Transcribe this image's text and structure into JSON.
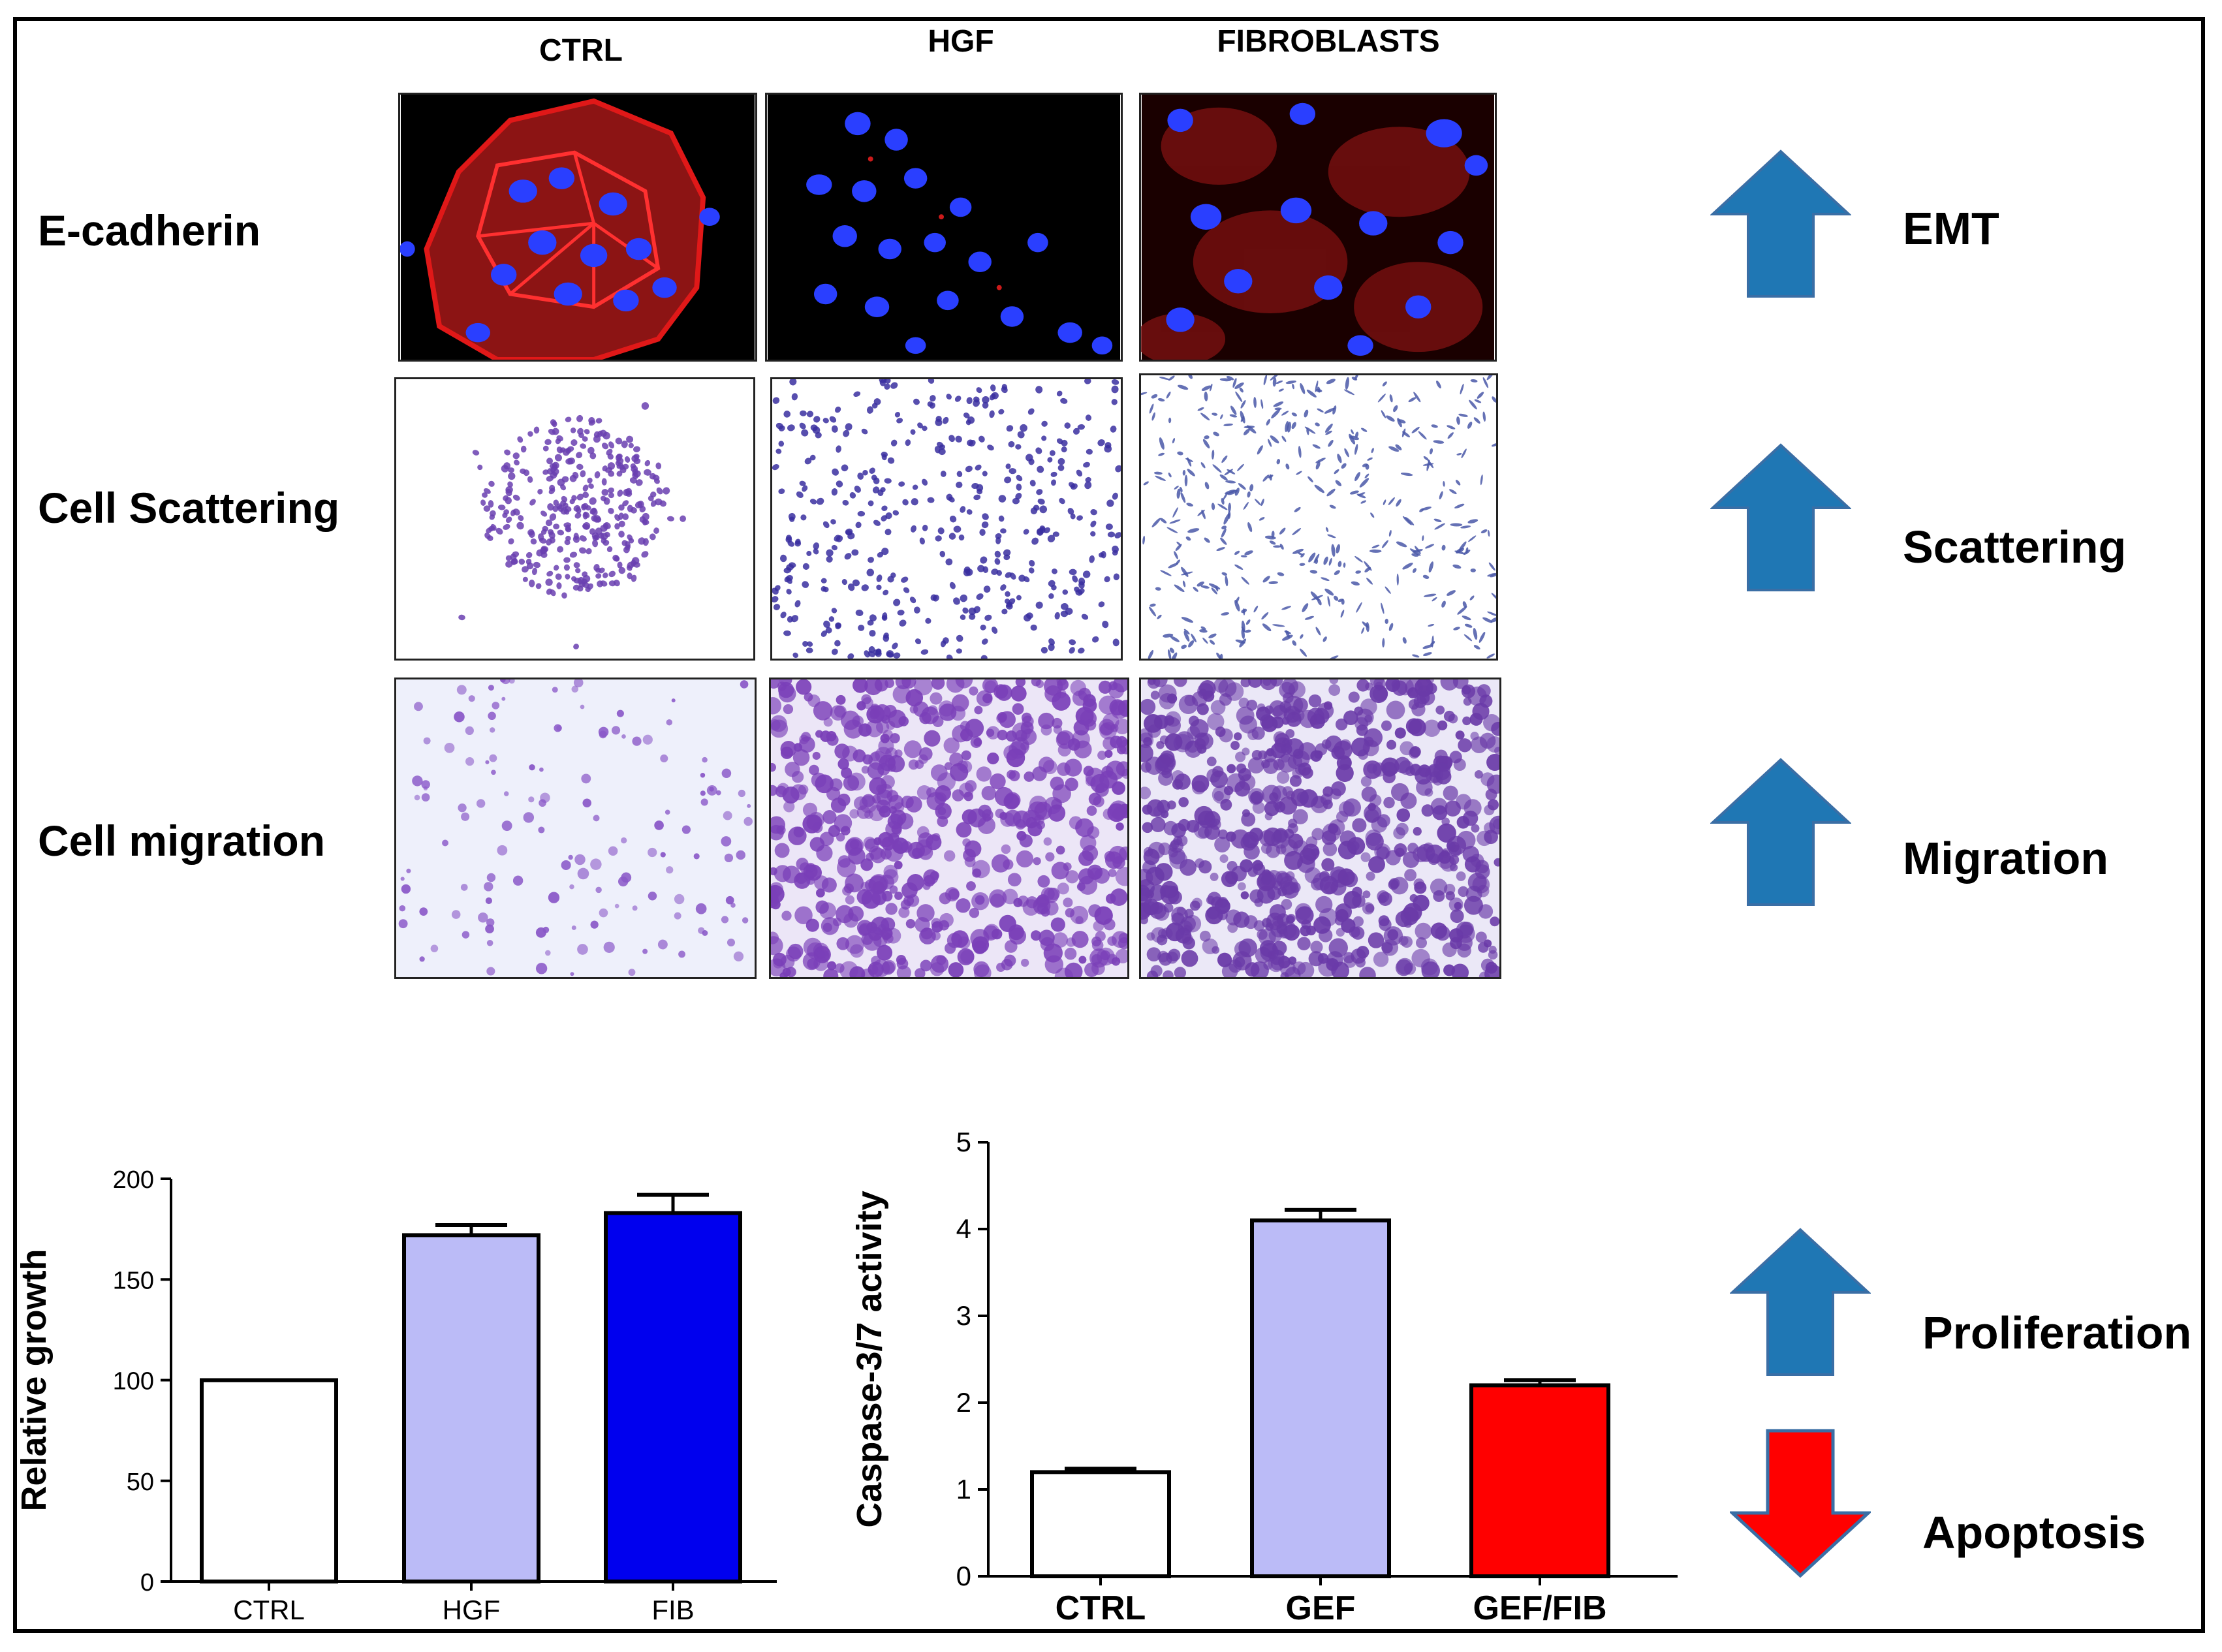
{
  "figure": {
    "columns": [
      "CTRL",
      "HGF",
      "FIBROBLASTS"
    ],
    "rows": [
      "E-cadherin",
      "Cell Scattering",
      "Cell migration"
    ],
    "effects": {
      "emt": "EMT",
      "scattering": "Scattering",
      "migration": "Migration",
      "proliferation": "Proliferation",
      "apoptosis": "Apoptosis"
    },
    "colors": {
      "up_arrow": "#1f77b4",
      "down_arrow": "#ff0000",
      "nuclei": "#2233ff",
      "membrane": "#e01818",
      "stain": "#6a3fb0"
    },
    "icons": {
      "up": "up-arrow-icon",
      "down": "down-arrow-icon"
    }
  },
  "chart_data": [
    {
      "type": "bar",
      "categories": [
        "CTRL",
        "HGF",
        "FIB"
      ],
      "values": [
        100,
        172,
        183
      ],
      "errors": [
        0,
        5,
        9
      ],
      "colors": [
        "#ffffff",
        "#bbbbf7",
        "#0000ee"
      ],
      "ylabel": "Relative growth",
      "ylim": [
        0,
        200
      ],
      "yticks": [
        0,
        50,
        100,
        150,
        200
      ]
    },
    {
      "type": "bar",
      "categories": [
        "CTRL",
        "GEF",
        "GEF/FIB"
      ],
      "values": [
        1.2,
        4.1,
        2.2
      ],
      "errors": [
        0.04,
        0.12,
        0.06
      ],
      "colors": [
        "#ffffff",
        "#bbbbf7",
        "#ff0000"
      ],
      "ylabel": "Caspase-3/7 activity",
      "ylim": [
        0,
        5
      ],
      "yticks": [
        0,
        1,
        2,
        3,
        4,
        5
      ]
    }
  ]
}
